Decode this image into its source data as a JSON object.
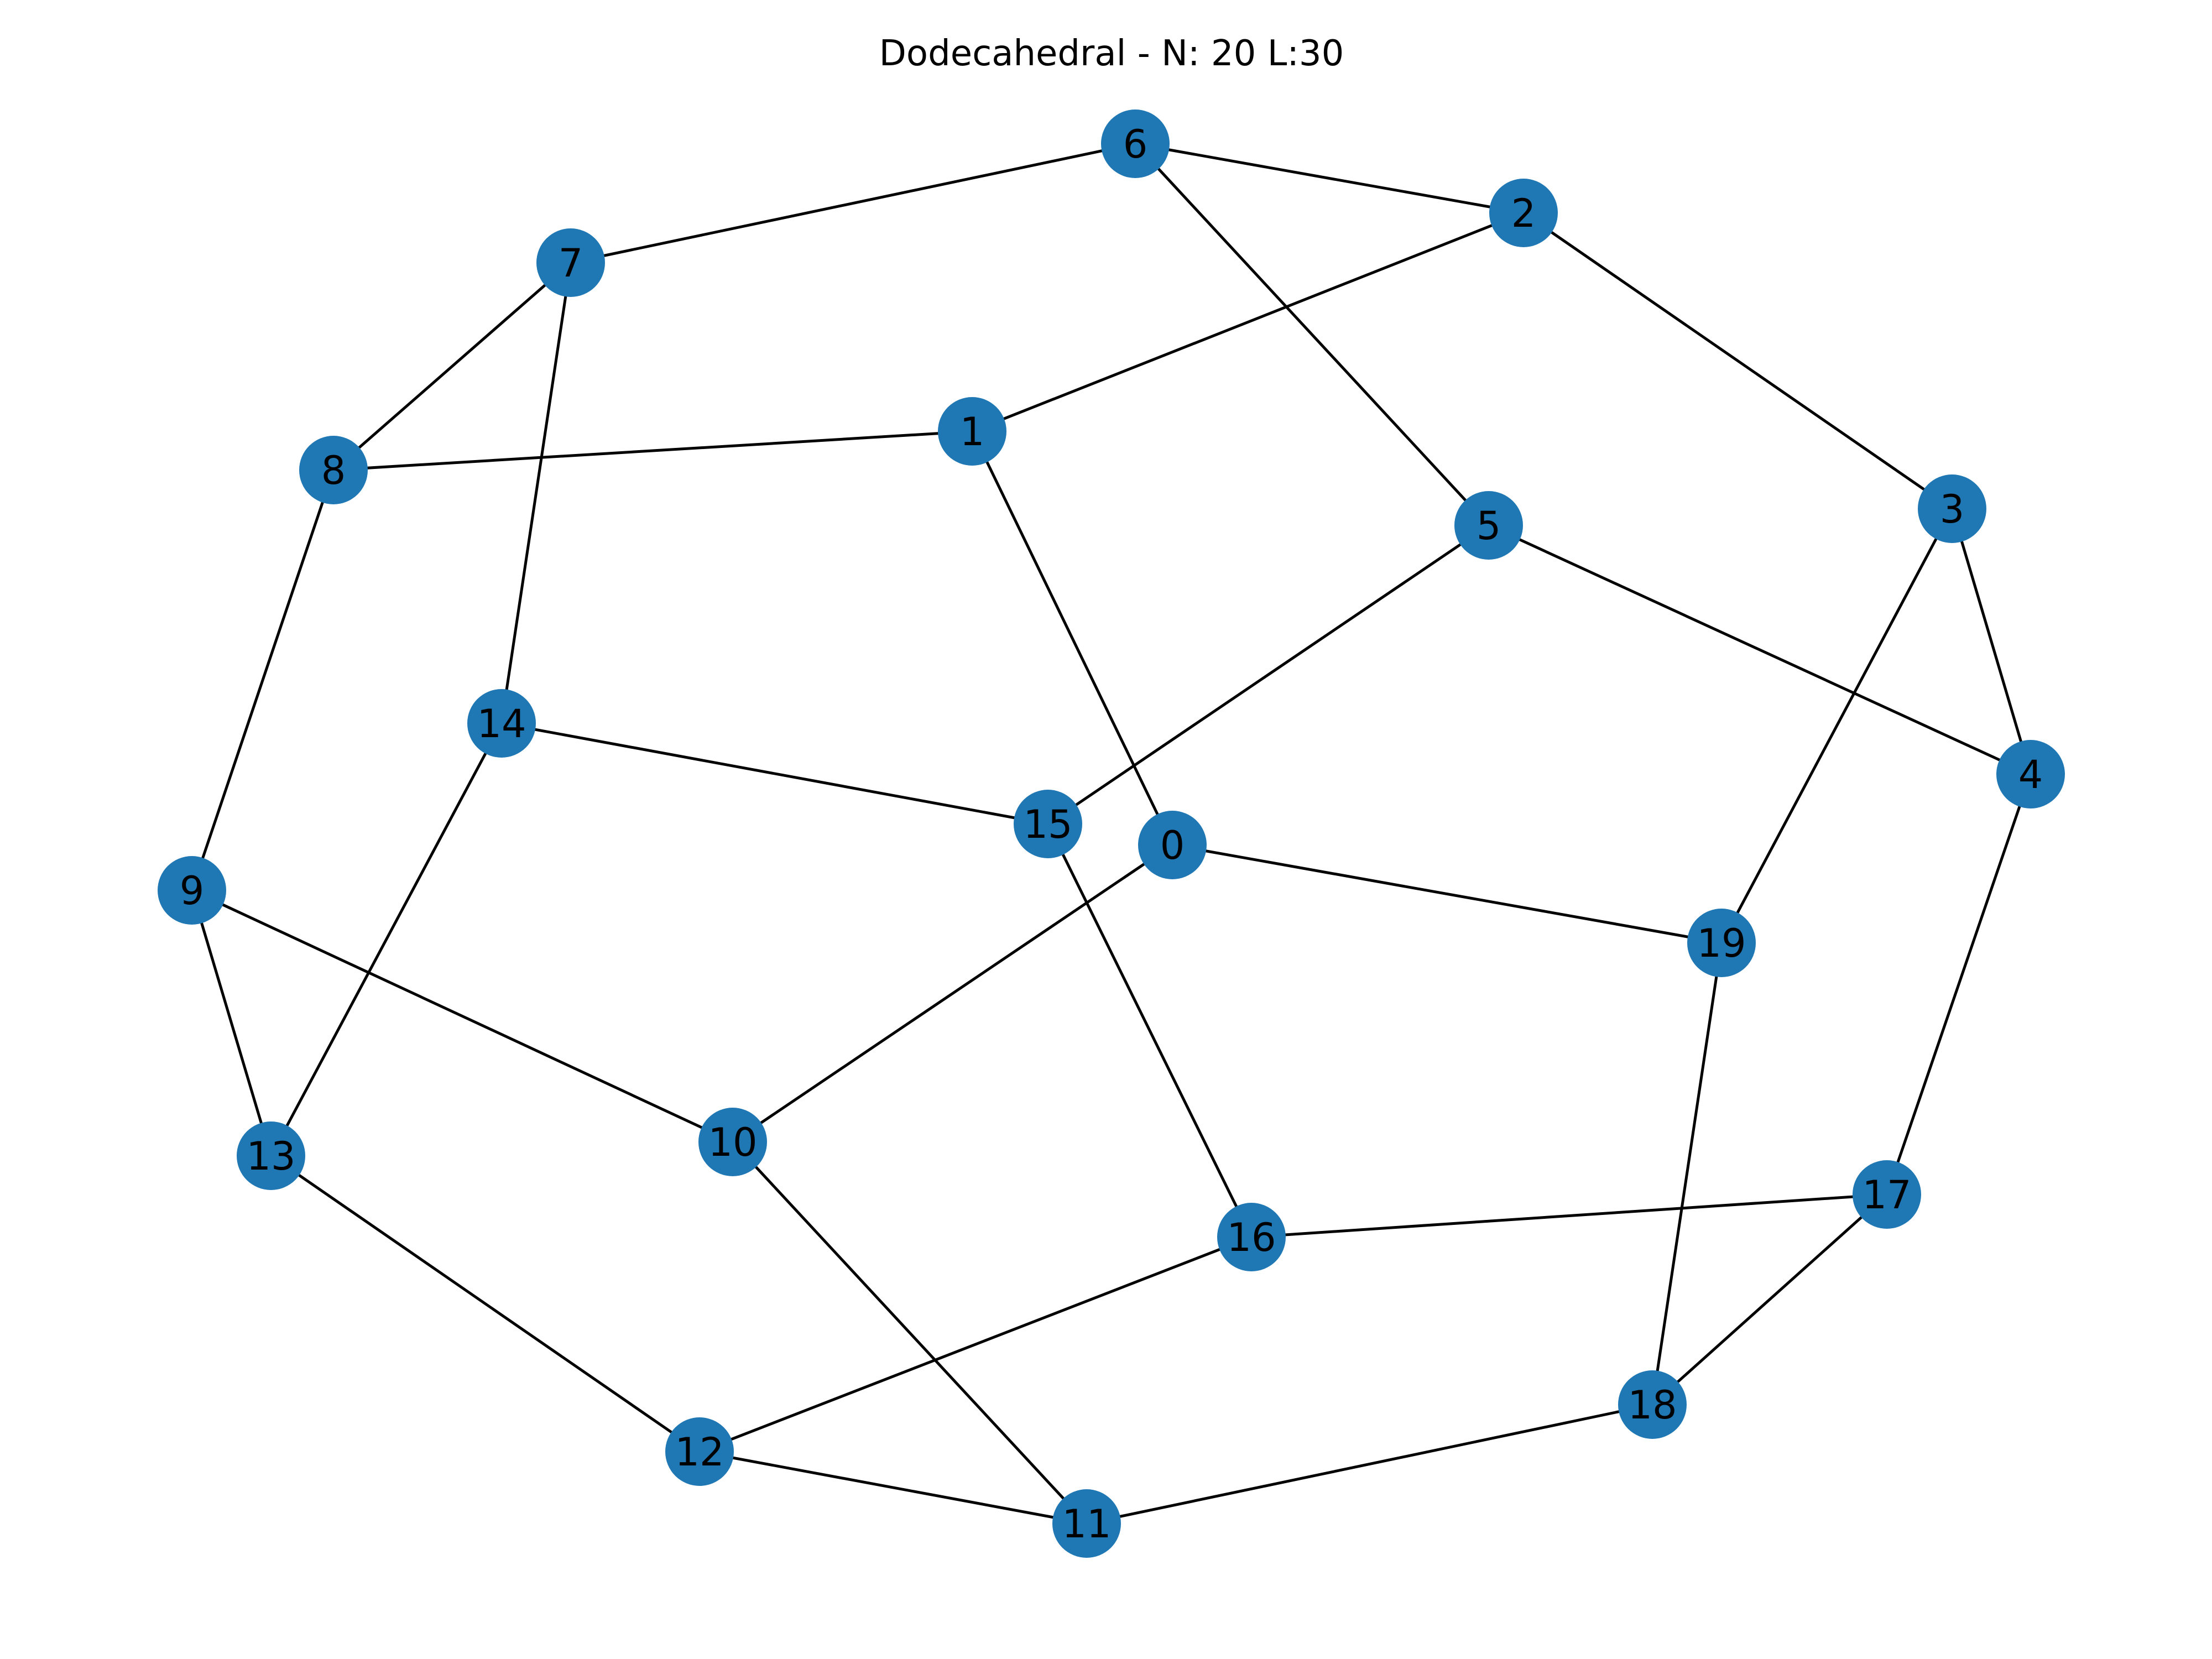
{
  "title": "Dodecahedral - N: 20 L:30",
  "node_color": "#1f77b4",
  "edge_color": "#000000",
  "nodes": [
    {
      "id": "0",
      "label": "0"
    },
    {
      "id": "1",
      "label": "1"
    },
    {
      "id": "2",
      "label": "2"
    },
    {
      "id": "3",
      "label": "3"
    },
    {
      "id": "4",
      "label": "4"
    },
    {
      "id": "5",
      "label": "5"
    },
    {
      "id": "6",
      "label": "6"
    },
    {
      "id": "7",
      "label": "7"
    },
    {
      "id": "8",
      "label": "8"
    },
    {
      "id": "9",
      "label": "9"
    },
    {
      "id": "10",
      "label": "10"
    },
    {
      "id": "11",
      "label": "11"
    },
    {
      "id": "12",
      "label": "12"
    },
    {
      "id": "13",
      "label": "13"
    },
    {
      "id": "14",
      "label": "14"
    },
    {
      "id": "15",
      "label": "15"
    },
    {
      "id": "16",
      "label": "16"
    },
    {
      "id": "17",
      "label": "17"
    },
    {
      "id": "18",
      "label": "18"
    },
    {
      "id": "19",
      "label": "19"
    }
  ],
  "edges": [
    [
      "6",
      "2"
    ],
    [
      "6",
      "7"
    ],
    [
      "6",
      "5"
    ],
    [
      "2",
      "1"
    ],
    [
      "2",
      "3"
    ],
    [
      "7",
      "8"
    ],
    [
      "7",
      "14"
    ],
    [
      "8",
      "1"
    ],
    [
      "8",
      "9"
    ],
    [
      "1",
      "0"
    ],
    [
      "5",
      "15"
    ],
    [
      "5",
      "4"
    ],
    [
      "3",
      "4"
    ],
    [
      "3",
      "19"
    ],
    [
      "14",
      "15"
    ],
    [
      "14",
      "13"
    ],
    [
      "9",
      "10"
    ],
    [
      "9",
      "13"
    ],
    [
      "0",
      "19"
    ],
    [
      "0",
      "10"
    ],
    [
      "15",
      "16"
    ],
    [
      "19",
      "18"
    ],
    [
      "4",
      "17"
    ],
    [
      "13",
      "12"
    ],
    [
      "10",
      "11"
    ],
    [
      "16",
      "17"
    ],
    [
      "16",
      "12"
    ],
    [
      "17",
      "18"
    ],
    [
      "18",
      "11"
    ],
    [
      "12",
      "11"
    ]
  ]
}
